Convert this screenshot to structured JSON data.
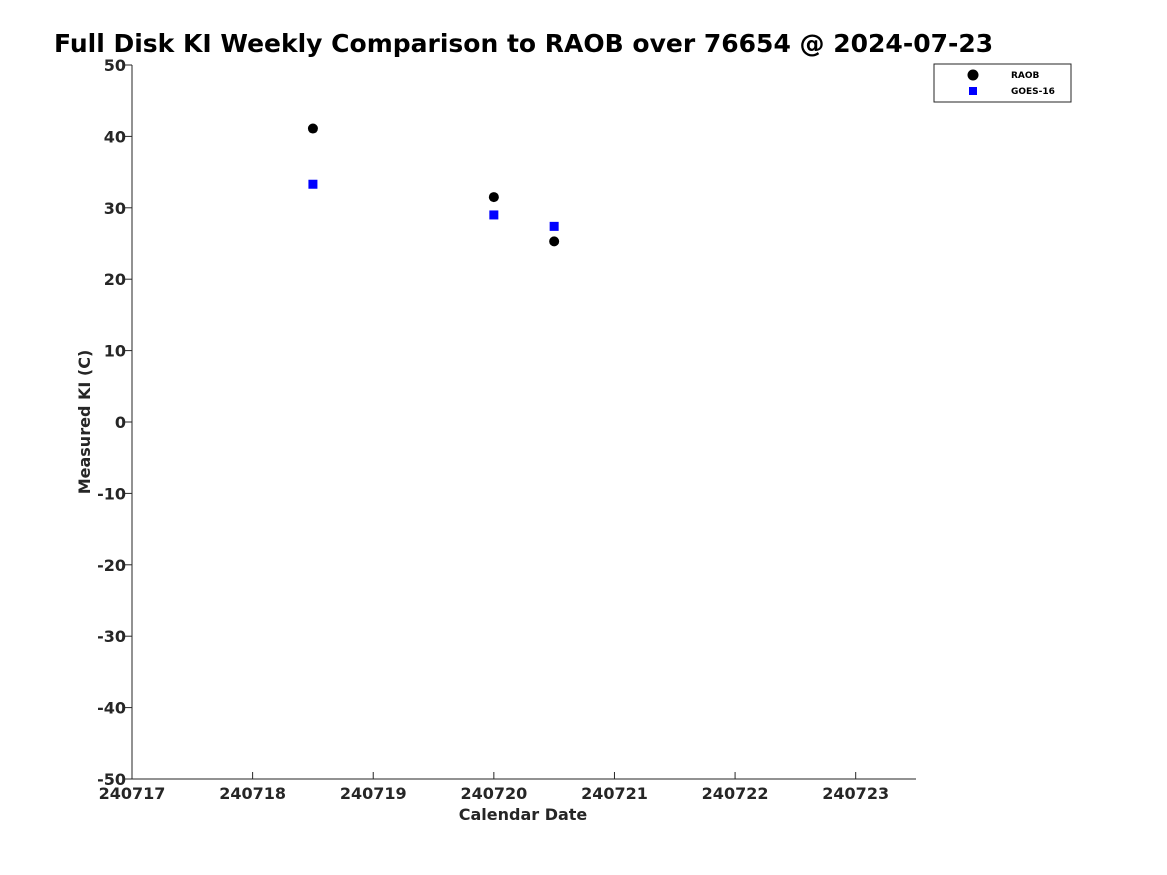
{
  "chart_data": {
    "type": "scatter",
    "title": "Full Disk KI Weekly Comparison to RAOB over 76654 @ 2024-07-23",
    "xlabel": "Calendar Date",
    "ylabel": "Measured KI (C)",
    "xlim": [
      240717,
      240723.5
    ],
    "ylim": [
      -50,
      50
    ],
    "x_ticks": [
      240717,
      240718,
      240719,
      240720,
      240721,
      240722,
      240723
    ],
    "x_tick_labels": [
      "240717",
      "240718",
      "240719",
      "240720",
      "240721",
      "240722",
      "240723"
    ],
    "y_ticks": [
      -50,
      -40,
      -30,
      -20,
      -10,
      0,
      10,
      20,
      30,
      40,
      50
    ],
    "y_tick_labels": [
      "-50",
      "-40",
      "-30",
      "-20",
      "-10",
      "0",
      "10",
      "20",
      "30",
      "40",
      "50"
    ],
    "grid": false,
    "legend_position": "top-right",
    "series": [
      {
        "name": "RAOB",
        "marker": "circle",
        "color": "#000000",
        "x": [
          240718.5,
          240720,
          240720.5
        ],
        "y": [
          41.1,
          31.5,
          25.3
        ]
      },
      {
        "name": "GOES-16",
        "marker": "square",
        "color": "#0000ff",
        "x": [
          240718.5,
          240720,
          240720.5
        ],
        "y": [
          33.3,
          29.0,
          27.4
        ]
      }
    ]
  }
}
